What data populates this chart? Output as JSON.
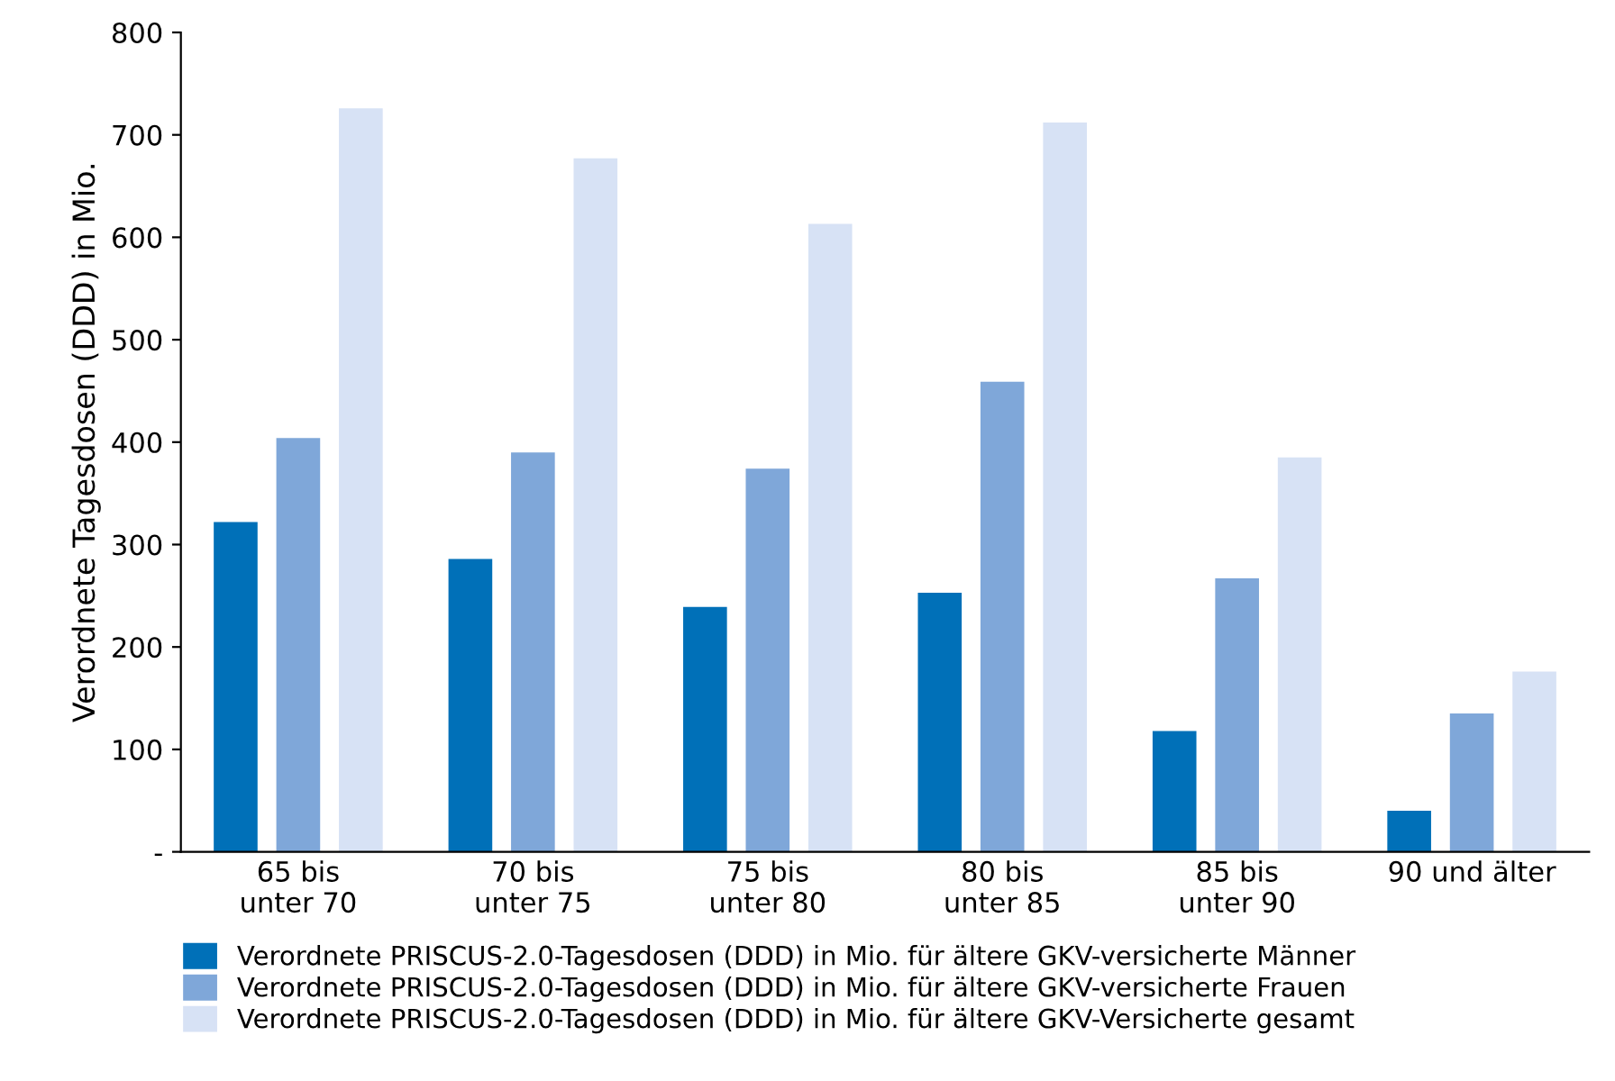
{
  "chart_data": {
    "type": "bar",
    "ylabel": "Verordnete Tagesdosen (DDD) in Mio.",
    "categories": [
      "65 bis\nunter 70",
      "70 bis\nunter 75",
      "75 bis\nunter 80",
      "80 bis\nunter 85",
      "85 bis\nunter 90",
      "90 und älter"
    ],
    "series": [
      {
        "name": "Verordnete PRISCUS-2.0-Tagesdosen (DDD) in Mio. für ältere GKV-versicherte Männer",
        "color": "#0070b8",
        "values": [
          322,
          286,
          239,
          253,
          118,
          40
        ]
      },
      {
        "name": "Verordnete PRISCUS-2.0-Tagesdosen (DDD) in Mio. für ältere GKV-versicherte Frauen",
        "color": "#7fa7d9",
        "values": [
          404,
          390,
          374,
          459,
          267,
          135
        ]
      },
      {
        "name": "Verordnete PRISCUS-2.0-Tagesdosen (DDD) in Mio. für ältere GKV-Versicherte gesamt",
        "color": "#d7e2f5",
        "values": [
          726,
          677,
          613,
          712,
          385,
          176
        ]
      }
    ],
    "ylim": [
      0,
      800
    ],
    "yticks": [
      {
        "value": 0,
        "label": "-"
      },
      100,
      200,
      300,
      400,
      500,
      600,
      700,
      800
    ],
    "grid": false,
    "legend": "bottom"
  }
}
